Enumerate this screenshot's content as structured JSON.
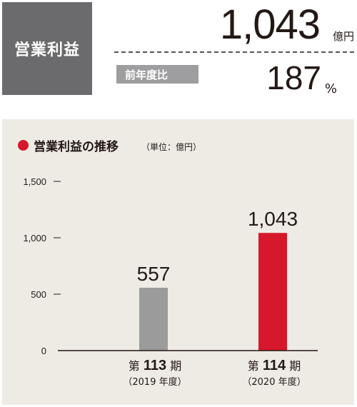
{
  "kpi": {
    "label": "営業利益",
    "value": "1,043",
    "unit": "億円",
    "yoy_label": "前年度比",
    "yoy_value": "187",
    "yoy_unit": "%"
  },
  "chart_title": "営業利益の推移",
  "chart_unit_note": "（単位：億円）",
  "colors": {
    "kpi_box": "#6b6b6d",
    "yoy_label_bg": "#9e9ea0",
    "panel_bg": "#eeebe5",
    "accent_red": "#d6182a",
    "bar_gray": "#9b9b9b"
  },
  "chart_data": {
    "type": "bar",
    "title": "営業利益の推移",
    "xlabel": "",
    "ylabel": "",
    "ylim": [
      0,
      1500
    ],
    "yticks": [
      0,
      500,
      1000,
      1500
    ],
    "ytick_labels": [
      "0",
      "500",
      "1,000",
      "1,500"
    ],
    "grid": false,
    "categories": [
      {
        "prefix": "第",
        "number": "113",
        "suffix": "期",
        "sub": "（2019 年度）"
      },
      {
        "prefix": "第",
        "number": "114",
        "suffix": "期",
        "sub": "（2020 年度）"
      }
    ],
    "values": [
      557,
      1043
    ],
    "value_labels": [
      "557",
      "1,043"
    ],
    "bar_colors": [
      "#9b9b9b",
      "#d6182a"
    ]
  }
}
